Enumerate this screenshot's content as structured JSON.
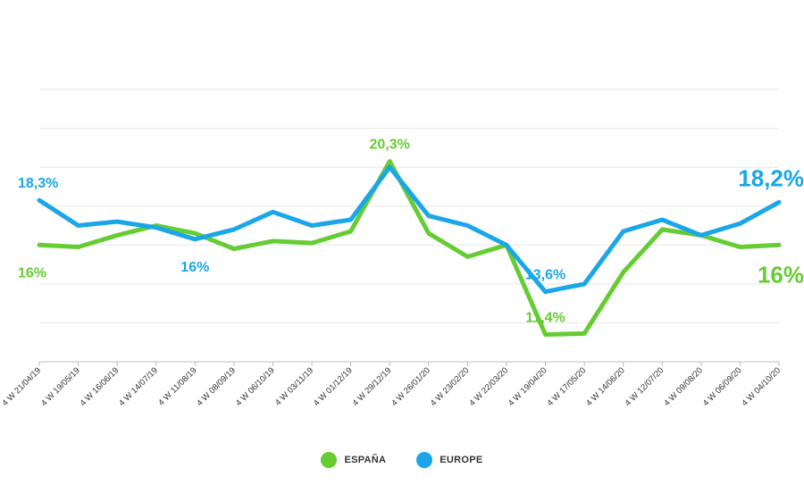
{
  "chart_data": {
    "type": "line",
    "categories": [
      "4 W 21/04/19",
      "4 W 19/05/19",
      "4 W 16/06/19",
      "4 W 14/07/19",
      "4 W 11/08/19",
      "4 W 08/09/19",
      "4 W 06/10/19",
      "4 W 03/11/19",
      "4 W 01/12/19",
      "4 W 29/12/19",
      "4 W 26/01/20",
      "4 W 23/02/20",
      "4 W 22/03/20",
      "4 W 19/04/20",
      "4 W 17/05/20",
      "4 W 14/06/20",
      "4 W 12/07/20",
      "4 W 09/08/20",
      "4 W 06/09/20",
      "4 W 04/10/20"
    ],
    "series": [
      {
        "name": "ESPAÑA",
        "color": "#66cc33",
        "values": [
          16.0,
          15.9,
          16.5,
          17.0,
          16.6,
          15.8,
          16.2,
          16.1,
          16.7,
          20.3,
          16.6,
          15.4,
          16.0,
          11.4,
          11.45,
          14.6,
          16.8,
          16.5,
          15.9,
          16.0
        ]
      },
      {
        "name": "EUROPE",
        "color": "#1aa6e8",
        "values": [
          18.3,
          17.0,
          17.2,
          16.9,
          16.3,
          16.8,
          17.7,
          17.0,
          17.3,
          20.0,
          17.5,
          17.0,
          16.0,
          13.6,
          14.0,
          16.7,
          17.3,
          16.5,
          17.1,
          18.2
        ]
      }
    ],
    "annotations": [
      {
        "text": "18,3%",
        "series": 1,
        "index": 0,
        "position": "above",
        "size": "medium"
      },
      {
        "text": "16%",
        "series": 0,
        "index": 0,
        "position": "below",
        "size": "medium"
      },
      {
        "text": "16%",
        "series": 1,
        "index": 4,
        "position": "below",
        "size": "medium"
      },
      {
        "text": "20,3%",
        "series": 0,
        "index": 9,
        "position": "above",
        "size": "medium"
      },
      {
        "text": "13,6%",
        "series": 1,
        "index": 13,
        "position": "above",
        "size": "medium"
      },
      {
        "text": "11,4%",
        "series": 0,
        "index": 13,
        "position": "above",
        "size": "medium"
      },
      {
        "text": "18,2%",
        "series": 1,
        "index": 19,
        "position": "above",
        "size": "large"
      },
      {
        "text": "16%",
        "series": 0,
        "index": 19,
        "position": "below",
        "size": "large"
      }
    ],
    "ylim": [
      10,
      24
    ],
    "grid": true,
    "legend": "bottom-center"
  }
}
